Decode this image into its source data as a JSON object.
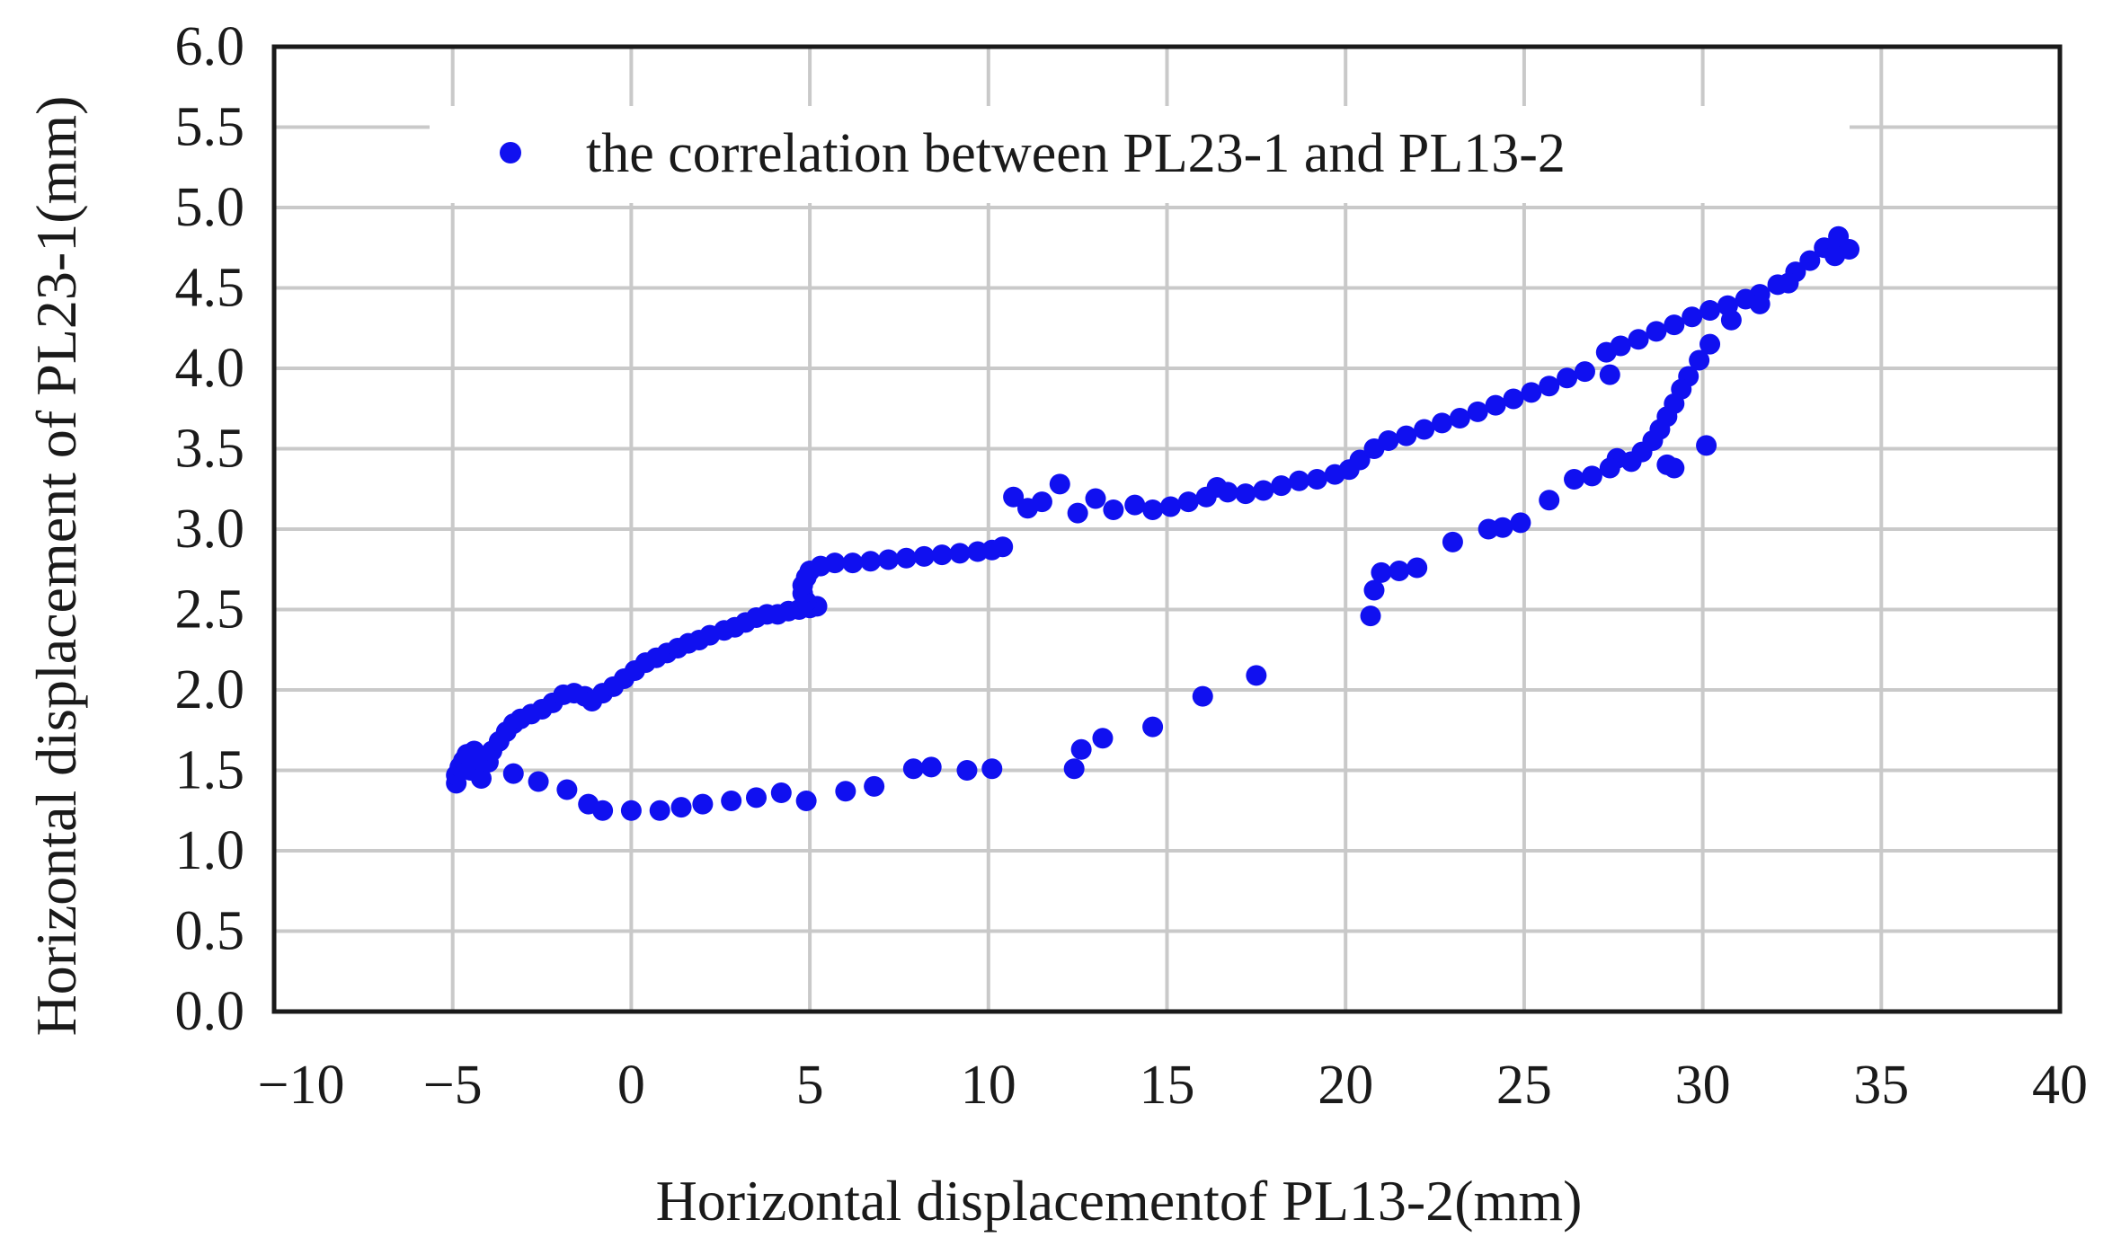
{
  "chart_data": {
    "type": "scatter",
    "title": "",
    "xlabel": "Horizontal displacementof PL13-2(mm)",
    "ylabel": "Horizontal displacement of PL23-1(mm)",
    "xlim": [
      -10,
      40
    ],
    "ylim": [
      0,
      6
    ],
    "grid": true,
    "legend_position": "top-center",
    "color": "#1010f0",
    "x_ticks": [
      -10,
      -5,
      0,
      5,
      10,
      15,
      20,
      25,
      30,
      35,
      40
    ],
    "x_tick_labels": [
      "−10",
      "−5",
      "0",
      "5",
      "10",
      "15",
      "20",
      "25",
      "30",
      "35",
      "40"
    ],
    "y_ticks": [
      0,
      0.5,
      1,
      1.5,
      2,
      2.5,
      3,
      3.5,
      4,
      4.5,
      5,
      5.5,
      6
    ],
    "y_tick_labels": [
      "0.0",
      "0.5",
      "1.0",
      "1.5",
      "2.0",
      "2.5",
      "3.0",
      "3.5",
      "4.0",
      "4.5",
      "5.0",
      "5.5",
      "6.0"
    ],
    "series": [
      {
        "name": "the correlation between PL23-1 and PL13-2",
        "points": [
          [
            -4.9,
            1.42
          ],
          [
            -4.9,
            1.47
          ],
          [
            -4.8,
            1.52
          ],
          [
            -4.7,
            1.56
          ],
          [
            -4.6,
            1.6
          ],
          [
            -4.4,
            1.62
          ],
          [
            -4.2,
            1.58
          ],
          [
            -4.5,
            1.5
          ],
          [
            -4.2,
            1.45
          ],
          [
            -4.0,
            1.55
          ],
          [
            -3.9,
            1.62
          ],
          [
            -3.7,
            1.68
          ],
          [
            -3.5,
            1.74
          ],
          [
            -3.3,
            1.79
          ],
          [
            -3.1,
            1.82
          ],
          [
            -2.8,
            1.85
          ],
          [
            -2.5,
            1.88
          ],
          [
            -2.2,
            1.92
          ],
          [
            -1.9,
            1.97
          ],
          [
            -1.6,
            1.98
          ],
          [
            -1.3,
            1.96
          ],
          [
            -1.1,
            1.93
          ],
          [
            -0.8,
            1.98
          ],
          [
            -0.5,
            2.02
          ],
          [
            -0.2,
            2.07
          ],
          [
            0.1,
            2.12
          ],
          [
            0.4,
            2.17
          ],
          [
            0.7,
            2.2
          ],
          [
            1.0,
            2.23
          ],
          [
            1.3,
            2.26
          ],
          [
            1.6,
            2.29
          ],
          [
            1.9,
            2.31
          ],
          [
            2.2,
            2.34
          ],
          [
            2.6,
            2.37
          ],
          [
            2.9,
            2.39
          ],
          [
            3.2,
            2.42
          ],
          [
            3.5,
            2.45
          ],
          [
            3.8,
            2.47
          ],
          [
            4.1,
            2.47
          ],
          [
            4.4,
            2.49
          ],
          [
            4.7,
            2.5
          ],
          [
            5.0,
            2.51
          ],
          [
            5.2,
            2.52
          ],
          [
            4.9,
            2.55
          ],
          [
            4.8,
            2.6
          ],
          [
            4.8,
            2.65
          ],
          [
            4.9,
            2.7
          ],
          [
            5.0,
            2.74
          ],
          [
            5.3,
            2.77
          ],
          [
            5.7,
            2.79
          ],
          [
            6.2,
            2.79
          ],
          [
            6.7,
            2.8
          ],
          [
            7.2,
            2.81
          ],
          [
            7.7,
            2.82
          ],
          [
            8.2,
            2.83
          ],
          [
            8.7,
            2.84
          ],
          [
            9.2,
            2.85
          ],
          [
            9.7,
            2.86
          ],
          [
            10.1,
            2.87
          ],
          [
            10.4,
            2.89
          ],
          [
            10.7,
            3.2
          ],
          [
            11.1,
            3.13
          ],
          [
            11.5,
            3.17
          ],
          [
            12.0,
            3.28
          ],
          [
            12.5,
            3.1
          ],
          [
            13.0,
            3.19
          ],
          [
            13.5,
            3.12
          ],
          [
            14.1,
            3.15
          ],
          [
            14.6,
            3.12
          ],
          [
            15.1,
            3.14
          ],
          [
            15.6,
            3.17
          ],
          [
            16.1,
            3.2
          ],
          [
            16.4,
            3.26
          ],
          [
            16.7,
            3.23
          ],
          [
            17.2,
            3.22
          ],
          [
            17.7,
            3.24
          ],
          [
            18.2,
            3.27
          ],
          [
            18.7,
            3.3
          ],
          [
            19.2,
            3.31
          ],
          [
            19.7,
            3.34
          ],
          [
            20.1,
            3.37
          ],
          [
            20.4,
            3.43
          ],
          [
            20.8,
            3.5
          ],
          [
            21.2,
            3.55
          ],
          [
            21.7,
            3.58
          ],
          [
            22.2,
            3.62
          ],
          [
            22.7,
            3.66
          ],
          [
            23.2,
            3.69
          ],
          [
            23.7,
            3.73
          ],
          [
            24.2,
            3.77
          ],
          [
            24.7,
            3.81
          ],
          [
            25.2,
            3.85
          ],
          [
            25.7,
            3.89
          ],
          [
            26.2,
            3.94
          ],
          [
            26.7,
            3.98
          ],
          [
            27.3,
            4.1
          ],
          [
            27.7,
            4.14
          ],
          [
            28.2,
            4.18
          ],
          [
            28.7,
            4.23
          ],
          [
            29.2,
            4.27
          ],
          [
            29.7,
            4.32
          ],
          [
            30.2,
            4.36
          ],
          [
            30.7,
            4.39
          ],
          [
            31.2,
            4.43
          ],
          [
            31.6,
            4.46
          ],
          [
            32.1,
            4.52
          ],
          [
            32.6,
            4.6
          ],
          [
            33.0,
            4.67
          ],
          [
            33.4,
            4.75
          ],
          [
            33.8,
            4.82
          ],
          [
            34.1,
            4.74
          ],
          [
            33.7,
            4.7
          ],
          [
            32.4,
            4.53
          ],
          [
            31.6,
            4.4
          ],
          [
            30.8,
            4.3
          ],
          [
            30.2,
            4.15
          ],
          [
            29.9,
            4.05
          ],
          [
            29.6,
            3.95
          ],
          [
            29.4,
            3.87
          ],
          [
            29.2,
            3.78
          ],
          [
            29.0,
            3.7
          ],
          [
            28.8,
            3.62
          ],
          [
            28.6,
            3.55
          ],
          [
            28.3,
            3.48
          ],
          [
            28.0,
            3.42
          ],
          [
            27.6,
            3.44
          ],
          [
            29.0,
            3.4
          ],
          [
            29.2,
            3.38
          ],
          [
            27.4,
            3.38
          ],
          [
            26.9,
            3.33
          ],
          [
            27.4,
            3.96
          ],
          [
            30.1,
            3.52
          ],
          [
            26.4,
            3.31
          ],
          [
            25.7,
            3.18
          ],
          [
            24.9,
            3.04
          ],
          [
            24.4,
            3.01
          ],
          [
            24.0,
            3.0
          ],
          [
            23.0,
            2.92
          ],
          [
            22.0,
            2.76
          ],
          [
            21.5,
            2.74
          ],
          [
            21.0,
            2.73
          ],
          [
            20.8,
            2.62
          ],
          [
            20.7,
            2.46
          ],
          [
            17.5,
            2.09
          ],
          [
            16.0,
            1.96
          ],
          [
            14.6,
            1.77
          ],
          [
            13.2,
            1.7
          ],
          [
            12.6,
            1.63
          ],
          [
            12.4,
            1.51
          ],
          [
            10.1,
            1.51
          ],
          [
            9.4,
            1.5
          ],
          [
            8.4,
            1.52
          ],
          [
            7.9,
            1.51
          ],
          [
            6.8,
            1.4
          ],
          [
            6.0,
            1.37
          ],
          [
            4.9,
            1.31
          ],
          [
            4.2,
            1.36
          ],
          [
            3.5,
            1.33
          ],
          [
            2.8,
            1.31
          ],
          [
            2.0,
            1.29
          ],
          [
            1.4,
            1.27
          ],
          [
            0.8,
            1.25
          ],
          [
            0.0,
            1.25
          ],
          [
            -0.8,
            1.25
          ],
          [
            -1.2,
            1.29
          ],
          [
            -1.8,
            1.38
          ],
          [
            -2.6,
            1.43
          ],
          [
            -3.3,
            1.48
          ]
        ]
      }
    ]
  }
}
